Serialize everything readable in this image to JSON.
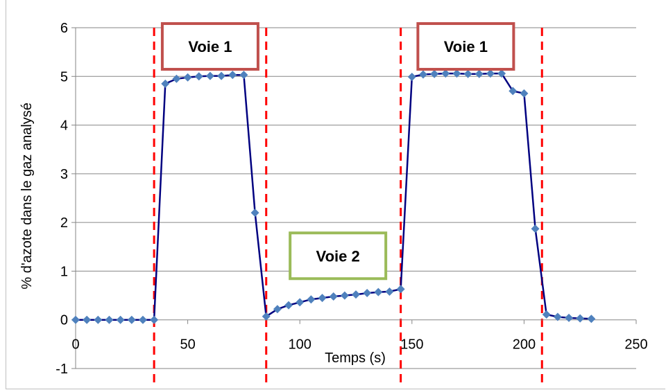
{
  "chart_data": {
    "type": "line",
    "title": "",
    "xlabel": "Temps (s)",
    "ylabel": "% d'azote dans le gaz analysé",
    "xlim": [
      0,
      250
    ],
    "ylim": [
      -1,
      6
    ],
    "xticks": [
      0,
      50,
      100,
      150,
      200,
      250
    ],
    "yticks": [
      -1,
      0,
      1,
      2,
      3,
      4,
      5,
      6
    ],
    "grid": "horizontal",
    "series": [
      {
        "name": "",
        "color": "#000080",
        "marker_color": "#4f81bd",
        "marker": "diamond",
        "x": [
          0,
          5,
          10,
          15,
          20,
          25,
          30,
          35,
          40,
          45,
          50,
          55,
          60,
          65,
          70,
          75,
          80,
          85,
          90,
          95,
          100,
          105,
          110,
          115,
          120,
          125,
          130,
          135,
          140,
          145,
          150,
          155,
          160,
          165,
          170,
          175,
          180,
          185,
          190,
          195,
          200,
          205,
          210,
          215,
          220,
          225,
          230
        ],
        "y": [
          0,
          0,
          0,
          0,
          0,
          0,
          0,
          0,
          4.85,
          4.95,
          4.98,
          5.0,
          5.01,
          5.01,
          5.03,
          5.03,
          2.2,
          0.07,
          0.22,
          0.3,
          0.36,
          0.42,
          0.45,
          0.48,
          0.5,
          0.52,
          0.55,
          0.57,
          0.58,
          0.63,
          4.99,
          5.04,
          5.05,
          5.06,
          5.06,
          5.05,
          5.05,
          5.06,
          5.06,
          4.7,
          4.65,
          1.87,
          0.11,
          0.06,
          0.04,
          0.03,
          0.02
        ]
      }
    ],
    "vlines": {
      "x": [
        35,
        85,
        145,
        208
      ],
      "color": "#ff0000",
      "style": "dashed"
    },
    "annotations": [
      {
        "text": "Voie 1",
        "x": 60,
        "y": 5.9,
        "border_color": "#c0504d"
      },
      {
        "text": "Voie 2",
        "x": 117,
        "y": 1.6,
        "border_color": "#9bbb59"
      },
      {
        "text": "Voie 1",
        "x": 174,
        "y": 5.9,
        "border_color": "#c0504d"
      }
    ]
  }
}
